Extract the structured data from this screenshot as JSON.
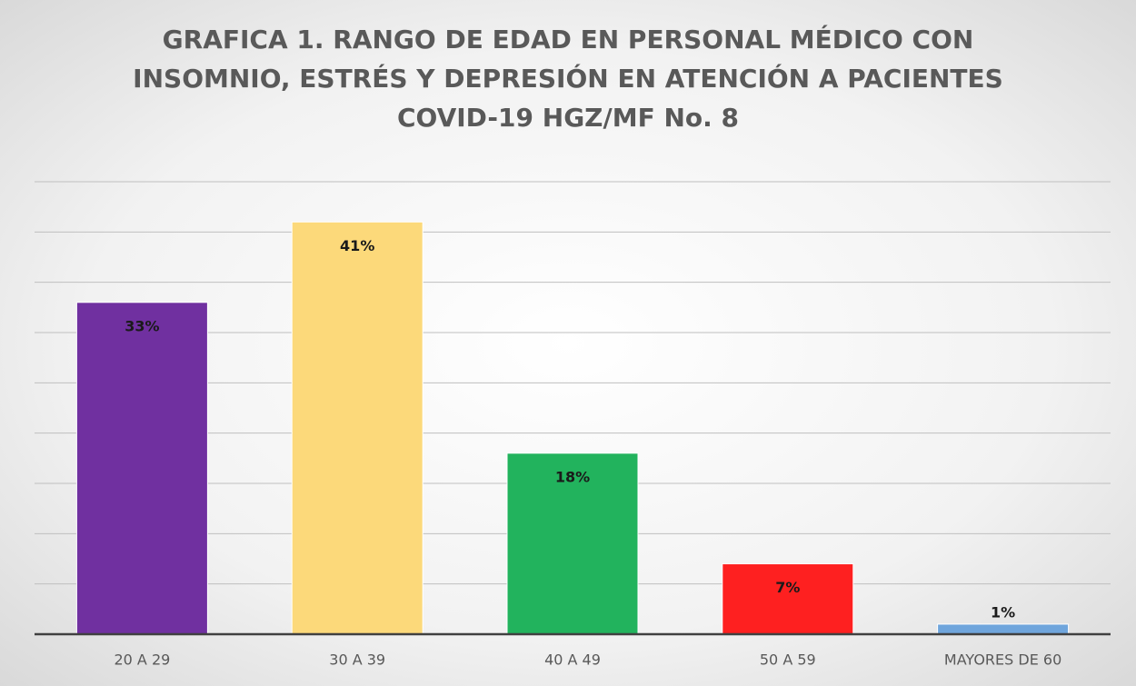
{
  "chart_data": {
    "type": "bar",
    "title": [
      "GRAFICA 1. RANGO DE EDAD EN PERSONAL MÉDICO CON",
      "INSOMNIO, ESTRÉS Y DEPRESIÓN EN ATENCIÓN A PACIENTES",
      "COVID-19 HGZ/MF No. 8"
    ],
    "categories": [
      "20 A 29",
      "30 A 39",
      "40 A 49",
      "50 A 59",
      "MAYORES DE 60"
    ],
    "values": [
      33,
      41,
      18,
      7,
      1
    ],
    "value_labels": [
      "33%",
      "41%",
      "18%",
      "7%",
      "1%"
    ],
    "colors": [
      "#7030a0",
      "#fcd97a",
      "#22b35d",
      "#fe2020",
      "#6fa5dc"
    ],
    "ylim": [
      0,
      45
    ],
    "yticks": [
      0,
      5,
      10,
      15,
      20,
      25,
      30,
      35,
      40,
      45
    ],
    "grid": true
  }
}
